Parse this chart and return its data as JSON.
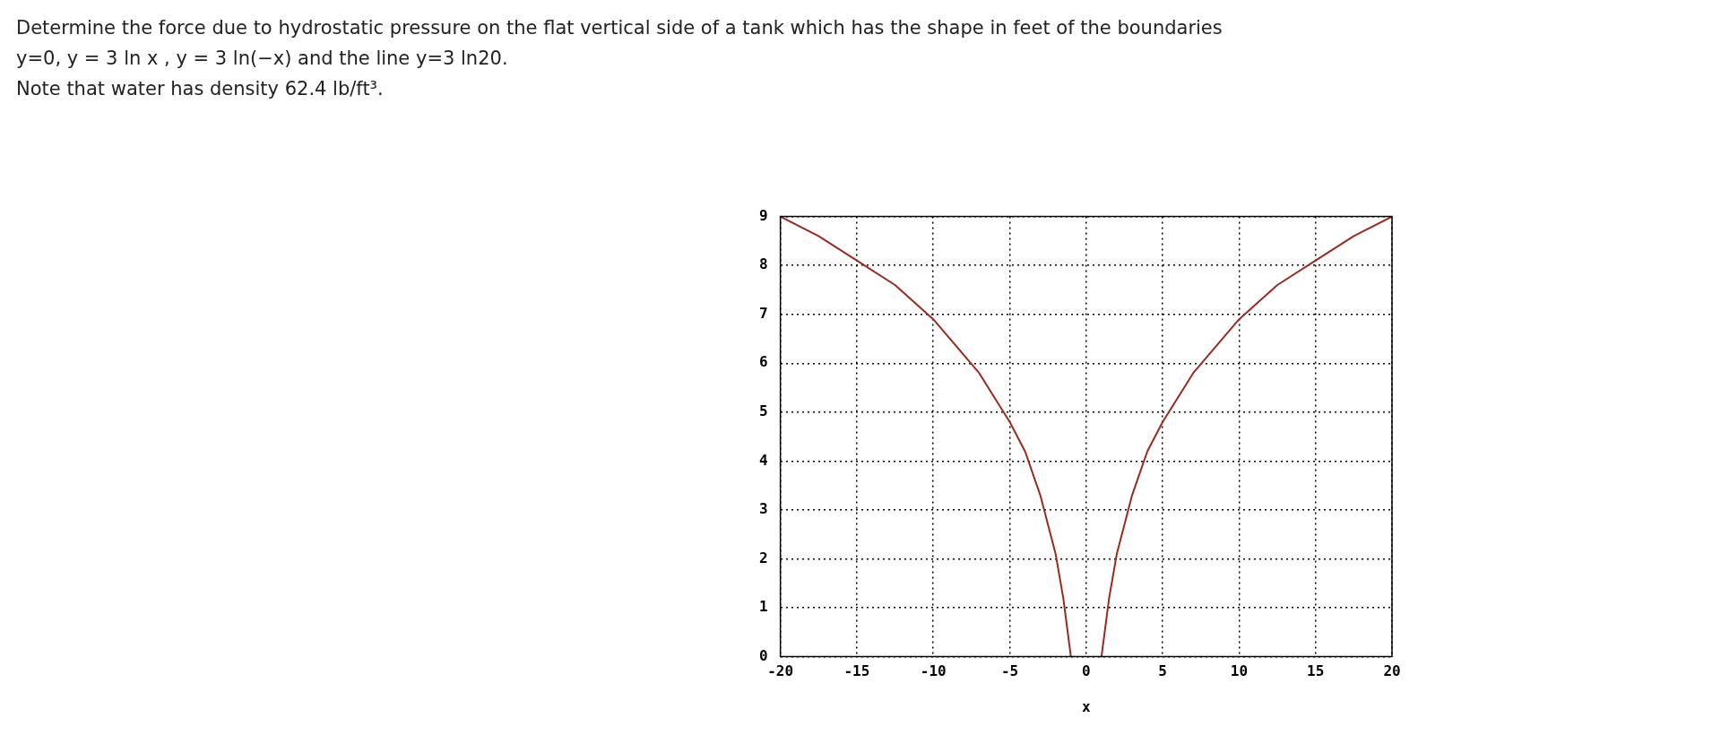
{
  "chart_data": {
    "type": "line",
    "title": "Determine the force due to hydrostatic pressure on the flat vertical side of a tank which has the shape in feet of the boundaries",
    "subtitle": "y=0,   y = 3 ln x ,   y = 3 ln(−x)   and the line y=3 ln20.",
    "annotations": [
      "Note that water has density 62.4 lb/ft³."
    ],
    "xlabel": "x",
    "series": [
      {
        "color": "#9b2a1d",
        "x": [
          -20,
          -17.5,
          -15,
          -12.5,
          -10,
          -7,
          -5,
          -4,
          -3,
          -2,
          -1.5,
          -1
        ],
        "values": [
          9,
          8.6,
          8.1,
          7.6,
          6.9,
          5.8,
          4.8,
          4.2,
          3.3,
          2.1,
          1.2,
          0
        ]
      },
      {
        "color": "#9b2a1d",
        "x": [
          1,
          1.5,
          2,
          3,
          4,
          5,
          7,
          10,
          12.5,
          15,
          17.5,
          20
        ],
        "values": [
          0,
          1.2,
          2.1,
          3.3,
          4.2,
          4.8,
          5.8,
          6.9,
          7.6,
          8.1,
          8.6,
          9
        ]
      }
    ],
    "xlim": [
      -20,
      20
    ],
    "xticks": [
      -20,
      -15,
      -10,
      -5,
      0,
      5,
      10,
      15,
      20
    ],
    "ylim": [
      0,
      9
    ],
    "yticks": [
      0,
      1,
      2,
      3,
      4,
      5,
      6,
      7,
      8,
      9
    ],
    "grid": true,
    "legend": false,
    "marker": "none",
    "line_style": "solid"
  }
}
